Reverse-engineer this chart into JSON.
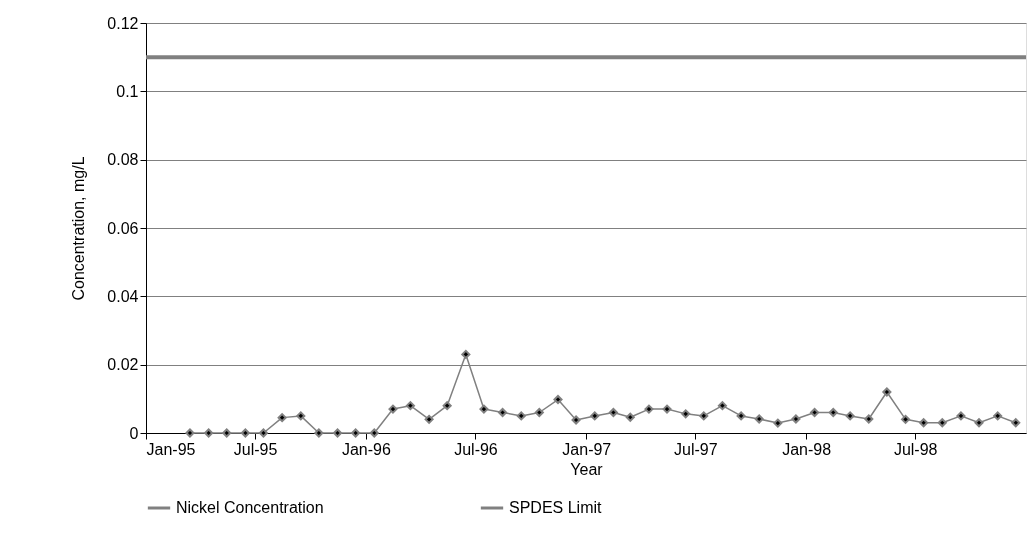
{
  "chart_data": {
    "type": "line",
    "xlabel": "Year",
    "ylabel": "Concentration, mg/L",
    "x": [
      "1995-03-15",
      "1995-04-15",
      "1995-05-15",
      "1995-06-15",
      "1995-07-15",
      "1995-08-15",
      "1995-09-15",
      "1995-10-15",
      "1995-11-15",
      "1995-12-15",
      "1996-01-15",
      "1996-02-15",
      "1996-03-15",
      "1996-04-15",
      "1996-05-15",
      "1996-06-15",
      "1996-07-15",
      "1996-08-15",
      "1996-09-15",
      "1996-10-15",
      "1996-11-15",
      "1996-12-15",
      "1997-01-15",
      "1997-02-15",
      "1997-03-15",
      "1997-04-15",
      "1997-05-15",
      "1997-06-15",
      "1997-07-15",
      "1997-08-15",
      "1997-09-15",
      "1997-10-15",
      "1997-11-15",
      "1997-12-15",
      "1998-01-15",
      "1998-02-15",
      "1998-03-15",
      "1998-04-15",
      "1998-05-15",
      "1998-06-15",
      "1998-07-15",
      "1998-08-15",
      "1998-09-15",
      "1998-10-15",
      "1998-11-15",
      "1998-12-15"
    ],
    "series": [
      {
        "name": "Nickel Concentration",
        "color": "#808080",
        "values": [
          0,
          0,
          0,
          0,
          0,
          0.0045,
          0.005,
          0,
          0,
          0,
          0,
          0.007,
          0.008,
          0.004,
          0.008,
          0.023,
          0.007,
          0.006,
          0.005,
          0.006,
          0.0098,
          0.0038,
          0.005,
          0.006,
          0.0046,
          0.007,
          0.007,
          0.0056,
          0.005,
          0.008,
          0.005,
          0.0041,
          0.0029,
          0.0041,
          0.006,
          0.006,
          0.005,
          0.0041,
          0.012,
          0.004,
          0.003,
          0.003,
          0.005,
          0.003,
          0.005,
          0.003
        ]
      }
    ],
    "ref_lines": [
      {
        "axis": "y",
        "value": 0.11,
        "label": "SPDES Limit",
        "color": "#808080"
      }
    ],
    "xlim": [
      "1995-01-01",
      "1999-01-01"
    ],
    "xticks": [
      {
        "value": "1995-01-01",
        "label": "Jan-95"
      },
      {
        "value": "1995-07-01",
        "label": "Jul-95"
      },
      {
        "value": "1996-01-01",
        "label": "Jan-96"
      },
      {
        "value": "1996-07-01",
        "label": "Jul-96"
      },
      {
        "value": "1997-01-01",
        "label": "Jan-97"
      },
      {
        "value": "1997-07-01",
        "label": "Jul-97"
      },
      {
        "value": "1998-01-01",
        "label": "Jan-98"
      },
      {
        "value": "1998-07-01",
        "label": "Jul-98"
      }
    ],
    "ylim": [
      0,
      0.12
    ],
    "yticks": [
      0,
      0.02,
      0.04,
      0.06,
      0.08,
      0.1,
      0.12
    ],
    "grid": "y",
    "legend": "bottom",
    "marker": "diamond",
    "line_style": "solid"
  }
}
